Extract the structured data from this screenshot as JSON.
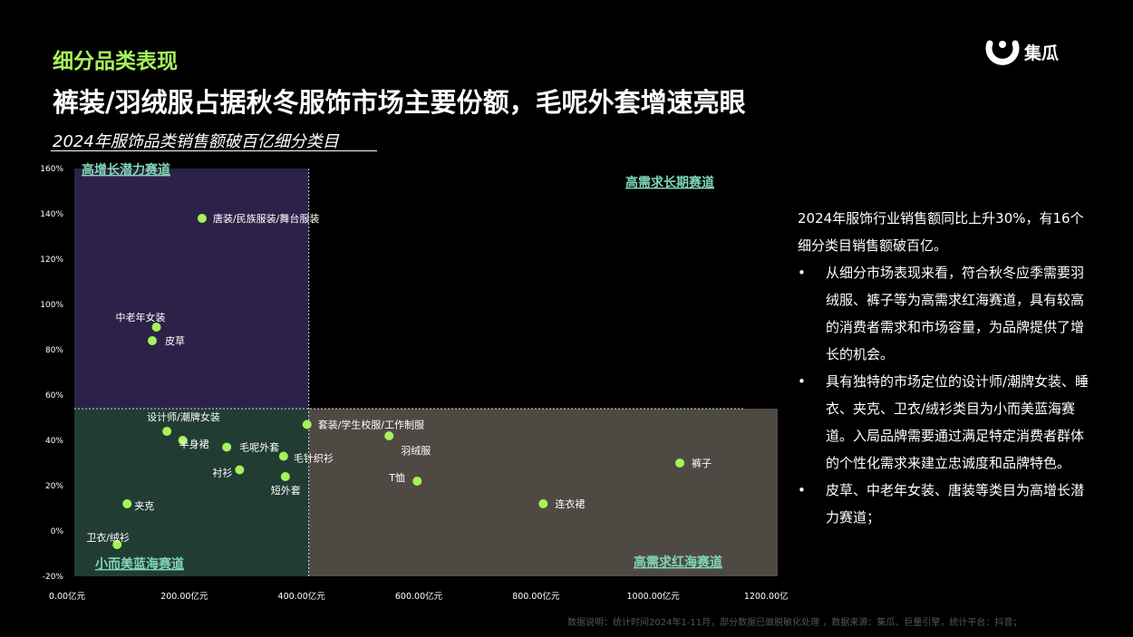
{
  "header": {
    "section": "细分品类表现",
    "title": "裤装/羽绒服占据秋冬服饰市场主要份额，毛呢外套增速亮眼",
    "subtitle": "2024年服饰品类销售额破百亿细分类目",
    "logo_text": "集瓜"
  },
  "colors": {
    "accent": "#a6f25a",
    "quadrant_top_left": "#2c2249",
    "quadrant_bottom_left": "#213d33",
    "quadrant_bottom_right": "#4f4944",
    "quadrant_label": "#7fd6b4",
    "point": "#a6f25a"
  },
  "chart_data": {
    "type": "scatter",
    "title": "2024年服饰品类销售额破百亿细分类目",
    "xlabel": "",
    "ylabel": "",
    "xlim": [
      0,
      1200
    ],
    "ylim": [
      -20,
      160
    ],
    "x_ticks": [
      "0.00亿元",
      "200.00亿元",
      "400.00亿元",
      "600.00亿元",
      "800.00亿元",
      "1000.00亿元",
      "1200.00亿元"
    ],
    "y_ticks": [
      "-20%",
      "0%",
      "20%",
      "40%",
      "60%",
      "80%",
      "100%",
      "120%",
      "140%",
      "160%"
    ],
    "x_divider": 400,
    "y_divider": 54,
    "quadrants": [
      {
        "label": "高增长潜力赛道"
      },
      {
        "label": "高需求长期赛道"
      },
      {
        "label": "小而美蓝海赛道"
      },
      {
        "label": "高需求红海赛道"
      }
    ],
    "points": [
      {
        "label": "唐装/民族服装/舞台服装",
        "x": 218,
        "y": 138
      },
      {
        "label": "中老年女装",
        "x": 140,
        "y": 90
      },
      {
        "label": "皮草",
        "x": 133,
        "y": 84
      },
      {
        "label": "设计师/潮牌女装",
        "x": 158,
        "y": 44
      },
      {
        "label": "半身裙",
        "x": 185,
        "y": 40
      },
      {
        "label": "毛呢外套",
        "x": 260,
        "y": 37
      },
      {
        "label": "毛针织衫",
        "x": 357,
        "y": 33
      },
      {
        "label": "衬衫",
        "x": 282,
        "y": 27
      },
      {
        "label": "短外套",
        "x": 360,
        "y": 24
      },
      {
        "label": "套装/学生校服/工作制服",
        "x": 397,
        "y": 47
      },
      {
        "label": "羽绒服",
        "x": 537,
        "y": 42
      },
      {
        "label": "T恤",
        "x": 585,
        "y": 22
      },
      {
        "label": "连衣裙",
        "x": 800,
        "y": 12
      },
      {
        "label": "裤子",
        "x": 1033,
        "y": 30
      },
      {
        "label": "夹克",
        "x": 90,
        "y": 12
      },
      {
        "label": "卫衣/绒衫",
        "x": 73,
        "y": -6
      }
    ]
  },
  "panel": {
    "intro": "2024年服饰行业销售额同比上升30%，有16个细分类目销售额破百亿。",
    "bullets": [
      "从细分市场表现来看，符合秋冬应季需要羽绒服、裤子等为高需求红海赛道，具有较高的消费者需求和市场容量，为品牌提供了增长的机会。",
      "具有独特的市场定位的设计师/潮牌女装、睡衣、夹克、卫衣/绒衫类目为小而美蓝海赛道。入局品牌需要通过满足特定消费者群体的个性化需求来建立忠诚度和品牌特色。",
      "皮草、中老年女装、唐装等类目为高增长潜力赛道；"
    ]
  },
  "footnote": "数据说明：统计时间2024年1-11月，部分数据已做脱敏化处理 ，数据来源：集瓜、巨量引擎，统计平台：抖音；"
}
